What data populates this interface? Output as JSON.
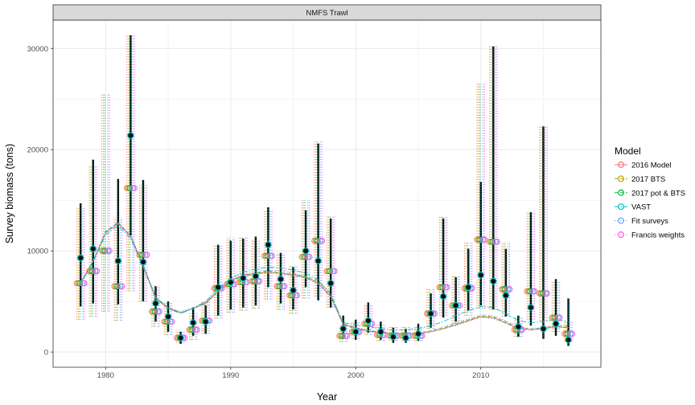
{
  "chart_data": {
    "type": "line",
    "panel_title": "NMFS Trawl",
    "xlabel": "Year",
    "ylabel": "Survey biomass (tons)",
    "xlim": [
      1975.8,
      2019.6
    ],
    "ylim": [
      -1500,
      32800
    ],
    "x_ticks": [
      1980,
      1990,
      2000,
      2010
    ],
    "y_ticks": [
      0,
      10000,
      20000,
      30000
    ],
    "grid": true,
    "legend_position": "right",
    "legend_title": "Model",
    "colors": {
      "2016 Model": "#F8766D",
      "2017 BTS": "#B79F00",
      "2017 pot & BTS": "#00BA38",
      "VAST": "#00BFC4",
      "Fit surveys": "#619CFF",
      "Francis weights": "#F564E3"
    },
    "series": [
      {
        "name": "2016 Model",
        "linestyle": "solid"
      },
      {
        "name": "2017 BTS",
        "linestyle": "dashed"
      },
      {
        "name": "2017 pot & BTS",
        "linestyle": "dashed"
      },
      {
        "name": "VAST",
        "linestyle": "dashdot"
      },
      {
        "name": "Fit surveys",
        "linestyle": "dotted"
      },
      {
        "name": "Francis weights",
        "linestyle": "dotted"
      }
    ],
    "observed_database": {
      "years": [
        1978,
        1979,
        1980,
        1981,
        1982,
        1983,
        1984,
        1985,
        1986,
        1987,
        1988,
        1989,
        1990,
        1991,
        1992,
        1993,
        1994,
        1995,
        1996,
        1997,
        1998,
        1999,
        2000,
        2001,
        2002,
        2003,
        2004,
        2005,
        2006,
        2007,
        2008,
        2009,
        2010,
        2011,
        2012,
        2013,
        2014,
        2015,
        2016,
        2017
      ],
      "values": [
        6800,
        8000,
        10000,
        6500,
        16200,
        9600,
        4000,
        3000,
        1400,
        2200,
        3100,
        6300,
        6700,
        6900,
        7000,
        9500,
        6500,
        5600,
        9400,
        11000,
        8000,
        1600,
        2000,
        2800,
        1700,
        1600,
        1600,
        1600,
        3800,
        6400,
        4600,
        6300,
        11100,
        10900,
        6200,
        2200,
        6000,
        5800,
        3400,
        1800
      ],
      "lower": [
        3200,
        3500,
        4000,
        3100,
        6000,
        5000,
        2500,
        1700,
        900,
        1200,
        1800,
        3300,
        3900,
        4100,
        4300,
        5200,
        4200,
        3800,
        5300,
        5500,
        4400,
        1000,
        1300,
        1700,
        1100,
        1100,
        1100,
        1100,
        2300,
        3600,
        2800,
        3600,
        4300,
        4200,
        3500,
        1500,
        3200,
        3100,
        2000,
        1100
      ],
      "upper": [
        14200,
        18500,
        25500,
        13300,
        31400,
        16500,
        6600,
        5000,
        2200,
        3800,
        5100,
        10500,
        11300,
        11300,
        11000,
        14000,
        9700,
        8600,
        15000,
        20800,
        13400,
        2600,
        3000,
        4700,
        2700,
        2500,
        2500,
        2500,
        6200,
        13400,
        7600,
        10800,
        26500,
        30300,
        10900,
        3400,
        13900,
        22400,
        7000,
        3000
      ]
    },
    "observed_vast": {
      "years": [
        1978,
        1979,
        1981,
        1982,
        1983,
        1984,
        1985,
        1986,
        1987,
        1988,
        1989,
        1990,
        1991,
        1992,
        1993,
        1994,
        1995,
        1996,
        1997,
        1998,
        1999,
        2000,
        2001,
        2002,
        2003,
        2004,
        2005,
        2006,
        2007,
        2008,
        2009,
        2010,
        2011,
        2012,
        2013,
        2014,
        2015,
        2016,
        2017
      ],
      "values": [
        9300,
        10200,
        9000,
        21400,
        8900,
        4800,
        3500,
        1400,
        2900,
        3000,
        6400,
        6900,
        7300,
        7500,
        10600,
        7200,
        6100,
        10000,
        9000,
        6800,
        2300,
        2000,
        3100,
        2000,
        1500,
        1400,
        1800,
        3800,
        5500,
        4600,
        6400,
        7600,
        7000,
        5600,
        2500,
        4400,
        2300,
        2800,
        1200
      ],
      "lower": [
        4500,
        4800,
        4700,
        11500,
        5000,
        3000,
        2000,
        800,
        1600,
        1800,
        3600,
        4200,
        4400,
        4600,
        6400,
        4800,
        4200,
        6400,
        5100,
        4400,
        1300,
        1200,
        1900,
        1200,
        900,
        900,
        1100,
        2400,
        3400,
        3000,
        4100,
        4600,
        4200,
        3500,
        1500,
        2600,
        1300,
        1600,
        600
      ],
      "upper": [
        14700,
        19000,
        17100,
        31300,
        17000,
        6500,
        5000,
        2000,
        4400,
        4600,
        10600,
        11000,
        11200,
        11400,
        14300,
        9800,
        8400,
        14000,
        20600,
        13200,
        3600,
        3200,
        4900,
        3000,
        2400,
        2300,
        2800,
        5800,
        13200,
        7400,
        10200,
        16800,
        30200,
        10200,
        3600,
        13800,
        22300,
        7200,
        5300
      ]
    },
    "fitted": {
      "years": [
        1978,
        1979,
        1980,
        1981,
        1982,
        1983,
        1984,
        1985,
        1986,
        1987,
        1988,
        1989,
        1990,
        1991,
        1992,
        1993,
        1994,
        1995,
        1996,
        1997,
        1998,
        1999,
        2000,
        2001,
        2002,
        2003,
        2004,
        2005,
        2006,
        2007,
        2008,
        2009,
        2010,
        2011,
        2012,
        2013,
        2014,
        2015,
        2016,
        2017
      ],
      "2016 Model": [
        6800,
        9000,
        11800,
        12700,
        11400,
        8500,
        5300,
        4300,
        3900,
        4300,
        4900,
        6000,
        7100,
        7600,
        7800,
        7900,
        7800,
        7600,
        7400,
        6800,
        5500,
        2700,
        2400,
        2100,
        1900,
        1800,
        1800,
        1800,
        2000,
        2300,
        2700,
        3100,
        3500,
        3400,
        2900,
        2300,
        2200,
        2300,
        2500,
        2400
      ],
      "2017 BTS": [
        6800,
        9000,
        11800,
        12700,
        11500,
        8600,
        5400,
        4400,
        3900,
        4300,
        4800,
        6000,
        7000,
        7500,
        7700,
        7900,
        7800,
        7700,
        7500,
        7000,
        5800,
        2800,
        2400,
        2100,
        2000,
        1900,
        1900,
        1900,
        2100,
        2400,
        2800,
        3200,
        3600,
        3500,
        3000,
        2400,
        2300,
        2400,
        2600,
        2500
      ],
      "2017 pot & BTS": [
        6800,
        9000,
        11900,
        12800,
        11500,
        8600,
        5400,
        4400,
        3900,
        4300,
        4800,
        6000,
        7000,
        7500,
        7800,
        8000,
        7800,
        7600,
        7400,
        6800,
        5500,
        2700,
        2300,
        2100,
        1900,
        1800,
        1800,
        1800,
        2000,
        2300,
        2700,
        3100,
        3500,
        3400,
        2900,
        2300,
        2200,
        2300,
        2500,
        2400
      ],
      "VAST": [
        6700,
        8900,
        11600,
        12500,
        11200,
        8400,
        5300,
        4300,
        3800,
        4300,
        5000,
        6300,
        7300,
        7900,
        8200,
        8400,
        8300,
        8100,
        7800,
        7100,
        5700,
        2900,
        2700,
        2500,
        2300,
        2200,
        2200,
        2300,
        2600,
        3000,
        3600,
        4100,
        4500,
        4400,
        3800,
        3100,
        2900,
        3000,
        3200,
        3000
      ],
      "Fit surveys": [
        6900,
        9100,
        11900,
        12800,
        11500,
        8700,
        5400,
        4400,
        4000,
        4400,
        5000,
        6200,
        7200,
        7700,
        8000,
        8100,
        8000,
        7800,
        7500,
        6900,
        5600,
        2800,
        2400,
        2200,
        2000,
        1900,
        1900,
        1900,
        2100,
        2500,
        2900,
        3300,
        3700,
        3600,
        3100,
        2500,
        2300,
        2400,
        2700,
        2600
      ],
      "Francis weights": [
        6800,
        9000,
        11800,
        12700,
        11400,
        8500,
        5300,
        4300,
        3900,
        4300,
        4800,
        5900,
        6900,
        7400,
        7700,
        7800,
        7700,
        7500,
        7300,
        6700,
        5400,
        2700,
        2300,
        2000,
        1900,
        1800,
        1800,
        1800,
        2000,
        2300,
        2600,
        3000,
        3400,
        3300,
        2800,
        2300,
        2200,
        2300,
        2500,
        2400
      ]
    }
  }
}
